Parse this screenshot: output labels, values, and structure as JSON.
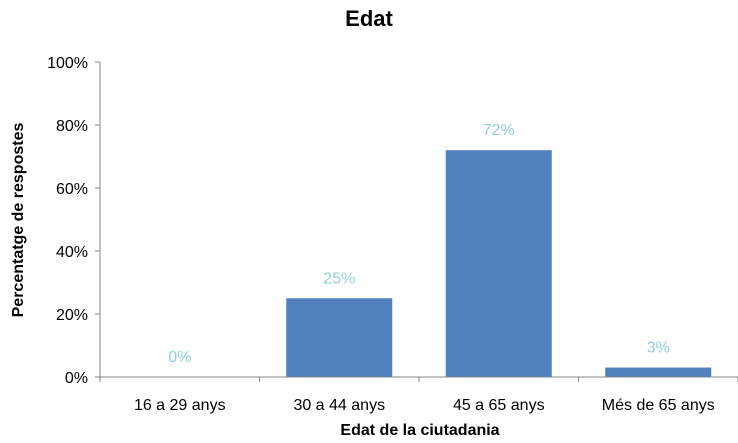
{
  "chart_data": {
    "type": "bar",
    "title": "Edat",
    "xlabel": "Edat de la ciutadania",
    "ylabel": "Percentatge de respostes",
    "categories": [
      "16 a 29 anys",
      "30 a 44 anys",
      "45 a 65 anys",
      "Més de 65 anys"
    ],
    "values": [
      0,
      25,
      72,
      3
    ],
    "data_labels": [
      "0%",
      "25%",
      "72%",
      "3%"
    ],
    "ylim": [
      0,
      100
    ],
    "y_ticks": [
      0,
      20,
      40,
      60,
      80,
      100
    ],
    "y_tick_labels": [
      "0%",
      "20%",
      "40%",
      "60%",
      "80%",
      "100%"
    ],
    "grid": false,
    "legend": "none",
    "colors": {
      "bar": "#4f81bd",
      "data_label": "#93cddd",
      "axis": "#868686"
    }
  }
}
